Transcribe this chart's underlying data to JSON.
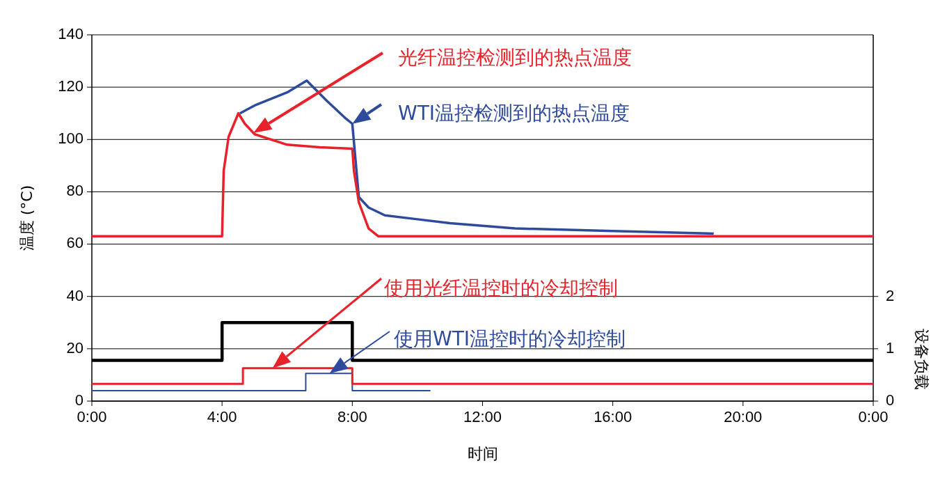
{
  "chart_data": {
    "type": "line",
    "xlabel": "时间",
    "ylabel": "温度 (°C)",
    "y2label": "设备负载",
    "xlim": [
      0,
      24
    ],
    "xticks": [
      {
        "value": 0,
        "label": "0:00"
      },
      {
        "value": 4,
        "label": "4:00"
      },
      {
        "value": 8,
        "label": "8:00"
      },
      {
        "value": 12,
        "label": "12:00"
      },
      {
        "value": 16,
        "label": "16:00"
      },
      {
        "value": 20,
        "label": "20:00"
      },
      {
        "value": 24,
        "label": "0:00"
      }
    ],
    "ylim": [
      0,
      140
    ],
    "yticks": [
      0,
      20,
      40,
      60,
      80,
      100,
      120,
      140
    ],
    "y2lim": [
      0,
      7
    ],
    "y2ticks": [
      0,
      1,
      2
    ],
    "grid": "y",
    "annotations": [
      "光纤温控检测到的热点温度",
      "WTI温控检测到的热点温度",
      "使用光纤温控时的冷却控制",
      "使用WTI温控时的冷却控制"
    ],
    "series": [
      {
        "color": "#e8222a",
        "x": [
          0,
          4,
          4.05,
          4.2,
          4.5,
          4.7,
          5,
          6,
          7,
          8,
          8.05,
          8.2,
          8.5,
          8.8,
          24
        ],
        "values": [
          63,
          63,
          88,
          101,
          110,
          106,
          102,
          98,
          97,
          96.5,
          88,
          76,
          66,
          63,
          63
        ]
      },
      {
        "color": "#2e4a9c",
        "x": [
          4.55,
          5,
          6,
          6.6,
          7.2,
          7.8,
          8,
          8.2,
          8.5,
          9,
          10,
          11,
          13,
          16,
          19.1
        ],
        "values": [
          110,
          113,
          118,
          122.5,
          115,
          108,
          106,
          78,
          74,
          71,
          69.5,
          68,
          66,
          65,
          64
        ]
      },
      {
        "color": "#000000",
        "axis": "y2",
        "x": [
          0,
          4,
          4,
          8,
          8,
          24
        ],
        "values": [
          0.78,
          0.78,
          1.5,
          1.5,
          0.78,
          0.78
        ]
      },
      {
        "color": "#e8222a",
        "axis": "y2",
        "x": [
          0,
          4.64,
          4.64,
          8,
          8,
          24
        ],
        "values": [
          0.33,
          0.33,
          0.63,
          0.63,
          0.33,
          0.33
        ]
      },
      {
        "color": "#2e4a9c",
        "axis": "y2",
        "x": [
          0,
          6.57,
          6.57,
          8,
          8,
          10.4
        ],
        "values": [
          0.2,
          0.2,
          0.53,
          0.53,
          0.2,
          0.2
        ]
      }
    ]
  }
}
